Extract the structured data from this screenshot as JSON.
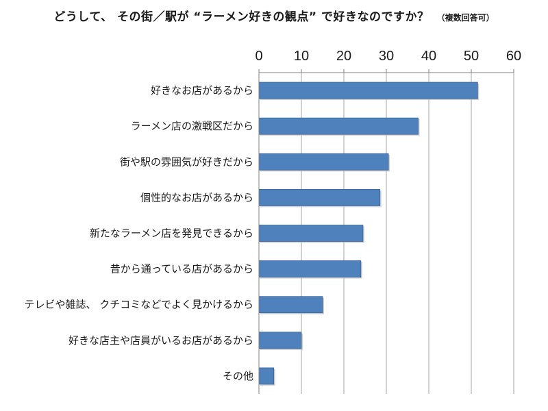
{
  "chart_data": {
    "type": "bar",
    "orientation": "horizontal",
    "title": "どうして、 その街／駅が “ラーメン好きの観点” で好きなのですか？",
    "note": "（複数回答可）",
    "xlim": [
      0,
      60
    ],
    "ticks": [
      "0",
      "10",
      "20",
      "30",
      "40",
      "50",
      "60"
    ],
    "grid": true,
    "bar_color": "#4f81bd",
    "categories": [
      "好きなお店があるから",
      "ラーメン店の激戦区だから",
      "街や駅の雰囲気が好きだから",
      "個性的なお店があるから",
      "新たなラーメン店を発見できるから",
      "昔から通っている店があるから",
      "テレビや雑誌、 クチコミなどでよく見かけるから",
      "好きな店主や店員がいるお店があるから",
      "その他"
    ],
    "values": [
      51.5,
      37.5,
      30.5,
      28.5,
      24.5,
      24.0,
      15.0,
      10.0,
      3.5
    ]
  }
}
